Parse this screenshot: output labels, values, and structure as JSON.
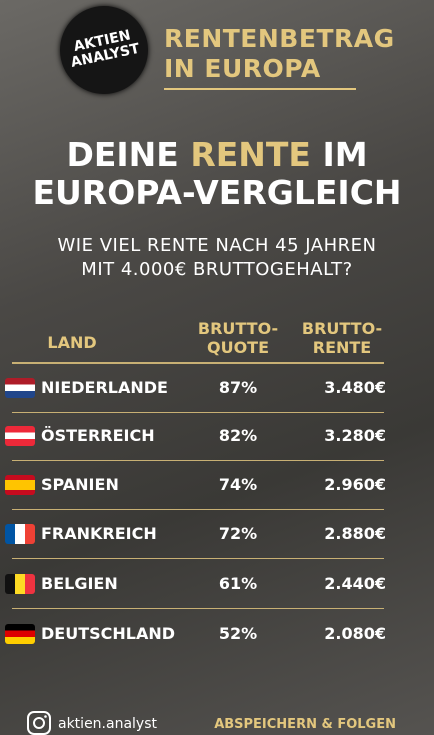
{
  "header": {
    "logo": [
      "AKTIEN",
      "ANALYST"
    ],
    "title": [
      "RENTENBETRAG",
      "IN EUROPA"
    ]
  },
  "title": {
    "before": "DEINE",
    "highlight": "RENTE",
    "after": "IM",
    "line2": "EUROPA-VERGLEICH"
  },
  "subtitle": [
    "WIE VIEL RENTE NACH 45 JAHREN",
    "MIT 4.000€ BRUTTOGEHALT?"
  ],
  "table": {
    "columns": [
      [
        "LAND"
      ],
      [
        "BRUTTO-",
        "QUOTE"
      ],
      [
        "BRUTTO-",
        "RENTE"
      ]
    ],
    "rows": [
      [
        "NIEDERLANDE",
        "87%",
        "3.480€"
      ],
      [
        "ÖSTERREICH",
        "82%",
        "3.280€"
      ],
      [
        "SPANIEN",
        "74%",
        "2.960€"
      ],
      [
        "FRANKREICH",
        "72%",
        "2.880€"
      ],
      [
        "BELGIEN",
        "61%",
        "2.440€"
      ],
      [
        "DEUTSCHLAND",
        "52%",
        "2.080€"
      ]
    ]
  },
  "footer": {
    "handle": "aktien.analyst",
    "cta": "ABSPEICHERN & FOLGEN"
  }
}
